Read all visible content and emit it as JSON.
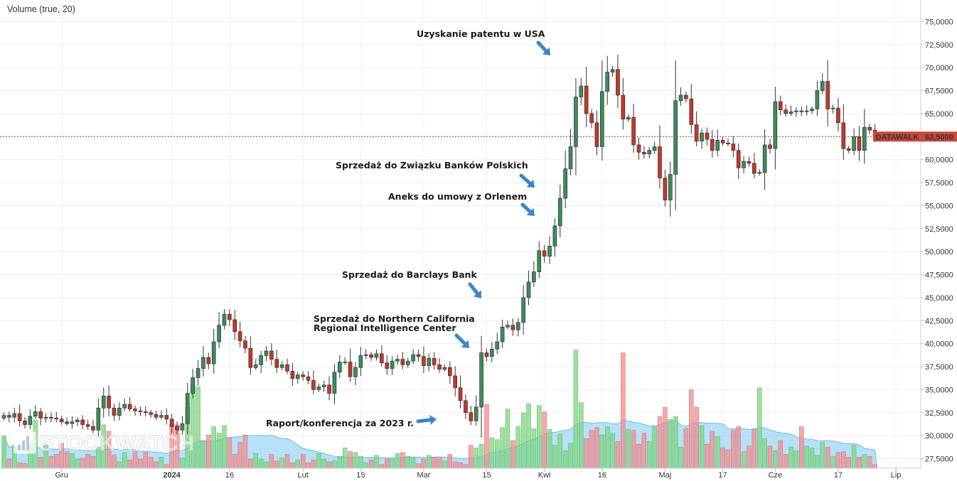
{
  "legend_text": "Volume (true, 20)",
  "watermark": "STOCKWATCH",
  "chart_data": {
    "type": "candlestick",
    "ticker": "DATAWALK",
    "last_price": "62,5000",
    "last_price_value": 62.5,
    "ylim": [
      26.5,
      76.5
    ],
    "y_ticks": [
      "27,5000",
      "30,0000",
      "32,5000",
      "35,0000",
      "37,5000",
      "40,0000",
      "42,5000",
      "45,0000",
      "47,5000",
      "50,0000",
      "52,5000",
      "55,0000",
      "57,5000",
      "60,0000",
      "62,5000",
      "65,0000",
      "67,5000",
      "70,0000",
      "72,5000",
      "75,0000"
    ],
    "x_ticks": [
      "Gru",
      "2024",
      "16",
      "Lut",
      "15",
      "Mar",
      "15",
      "Kwi",
      "16",
      "Maj",
      "17",
      "Cze",
      "17",
      "Lip"
    ],
    "annotations": [
      "Uzyskanie patentu w USA",
      "Sprzedaż do Związku Banków Polskich",
      "Aneks do umowy z Orlenem",
      "Sprzedaż do Barclays Bank",
      "Sprzedaż do Northern California Regional Intelligence Center",
      "Raport/konferencja za 2023 r."
    ],
    "closes": [
      32.2,
      32.0,
      32.4,
      31.6,
      31.2,
      32.1,
      32.6,
      31.9,
      32.0,
      31.9,
      31.8,
      31.5,
      31.3,
      31.5,
      31.7,
      31.2,
      31.0,
      30.6,
      33.0,
      34.3,
      33.0,
      32.2,
      33.0,
      33.4,
      32.9,
      32.7,
      32.6,
      32.5,
      32.3,
      32.0,
      32.2,
      31.8,
      31.0,
      30.6,
      31.3,
      34.6,
      36.3,
      37.3,
      38.5,
      37.8,
      40.2,
      42.0,
      43.2,
      42.6,
      41.3,
      40.3,
      39.5,
      37.4,
      37.7,
      38.7,
      39.2,
      38.3,
      37.4,
      37.7,
      37.0,
      36.2,
      36.6,
      36.4,
      36.0,
      35.0,
      35.3,
      35.5,
      34.6,
      36.9,
      38.0,
      38.0,
      36.4,
      37.4,
      38.7,
      38.8,
      38.5,
      38.9,
      37.9,
      37.3,
      38.1,
      38.3,
      37.7,
      38.1,
      38.8,
      38.6,
      37.6,
      38.4,
      37.7,
      37.2,
      37.4,
      36.5,
      35.2,
      33.8,
      32.5,
      31.6,
      33.1,
      39.0,
      38.6,
      39.4,
      40.2,
      41.8,
      42.0,
      41.5,
      42.3,
      45.0,
      46.7,
      47.8,
      50.1,
      49.5,
      50.6,
      52.8,
      55.8,
      59.0,
      61.4,
      66.8,
      68.0,
      65.0,
      64.0,
      61.4,
      67.4,
      69.5,
      69.8,
      67.0,
      64.4,
      64.6,
      61.6,
      60.8,
      60.6,
      61.0,
      61.4,
      58.0,
      55.6,
      58.4,
      66.4,
      67.0,
      66.6,
      63.8,
      62.0,
      62.9,
      62.2,
      61.0,
      62.1,
      61.8,
      61.7,
      61.0,
      59.1,
      59.8,
      59.6,
      58.5,
      58.6,
      61.6,
      61.2,
      66.3,
      65.4,
      65.0,
      65.2,
      65.3,
      65.2,
      65.3,
      65.5,
      67.5,
      68.5,
      65.5,
      65.6,
      64.0,
      61.2,
      61.0,
      62.5,
      61.0,
      63.5,
      63.2,
      62.5
    ],
    "volumes": [
      3.5,
      1.0,
      2.5,
      0.6,
      0.5,
      2.8,
      5.2,
      1.2,
      2.5,
      1.3,
      1.5,
      2.7,
      1.8,
      1.6,
      1.0,
      1.1,
      1.5,
      1.3,
      2.3,
      4.7,
      4.0,
      1.4,
      0.7,
      1.7,
      0.9,
      1.8,
      1.0,
      1.7,
      1.2,
      0.7,
      1.2,
      0.4,
      4.8,
      4.7,
      1.1,
      6.6,
      9.1,
      8.8,
      3.0,
      3.6,
      4.5,
      3.8,
      4.6,
      3.3,
      1.5,
      2.8,
      3.6,
      1.0,
      1.6,
      1.0,
      0.7,
      1.5,
      0.8,
      1.1,
      1.5,
      0.6,
      0.9,
      1.5,
      0.6,
      0.9,
      1.6,
      1.0,
      0.7,
      0.8,
      1.2,
      2.2,
      1.8,
      1.7,
      1.3,
      0.6,
      0.9,
      1.4,
      0.4,
      1.0,
      1.0,
      1.6,
      1.7,
      1.3,
      1.1,
      0.5,
      1.0,
      1.4,
      1.2,
      1.1,
      0.8,
      1.5,
      0.7,
      0.6,
      0.4,
      2.5,
      2.2,
      2.6,
      6.9,
      3.3,
      3.1,
      4.4,
      6.4,
      3.0,
      4.5,
      6.0,
      7.0,
      4.3,
      6.8,
      6.1,
      4.2,
      2.5,
      3.7,
      1.9,
      2.7,
      12.8,
      7.1,
      3.2,
      4.1,
      4.4,
      3.6,
      4.5,
      3.8,
      2.9,
      12.5,
      4.2,
      4.1,
      2.6,
      3.8,
      2.9,
      4.5,
      5.6,
      6.6,
      5.3,
      5.6,
      2.3,
      4.3,
      8.5,
      6.6,
      4.6,
      2.6,
      4.0,
      3.4,
      2.2,
      2.0,
      4.1,
      4.5,
      1.8,
      2.4,
      4.2,
      8.7,
      3.2,
      2.4,
      1.9,
      3.0,
      1.5,
      2.3,
      1.9,
      4.5,
      2.4,
      2.2,
      1.4,
      2.8,
      2.3,
      1.3,
      1.7,
      1.8,
      1.2,
      2.5,
      1.2,
      1.5,
      1.3,
      0.4
    ]
  }
}
